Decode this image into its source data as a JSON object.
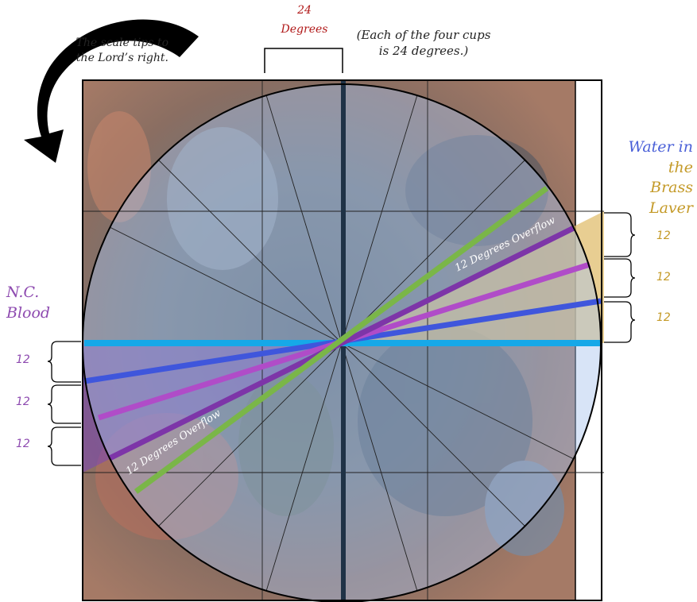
{
  "top_label": {
    "value": "24",
    "unit": "Degrees"
  },
  "note": {
    "line1": "(Each of the four cups",
    "line2": "is 24 degrees.)"
  },
  "tip_note": {
    "line1": "The scale tips to",
    "line2": "the Lord’s right."
  },
  "left_group": {
    "line1": "N.C.",
    "line2": "Blood",
    "increments": [
      "12",
      "12",
      "12"
    ]
  },
  "right_group": {
    "line1": "Water in",
    "line2": "the Brass",
    "line3": "Laver",
    "increments": [
      "12",
      "12",
      "12"
    ]
  },
  "overflow_upper": "12 Degrees Overflow",
  "overflow_lower": "12 Degrees Overflow",
  "icons": [
    "curved-arrow-icon"
  ],
  "colors": {
    "blood_text": "#8e4bb0",
    "water_title": "#4a60d8",
    "laver_text": "#c49a28",
    "degrees_text": "#b01818",
    "green_line": "#7ab648",
    "purple_dark": "#7d35a8",
    "purple_light": "#b04cc8",
    "blue_line": "#3f56dc",
    "cyan_line": "#16a8e8",
    "center_line": "#1f3246"
  }
}
